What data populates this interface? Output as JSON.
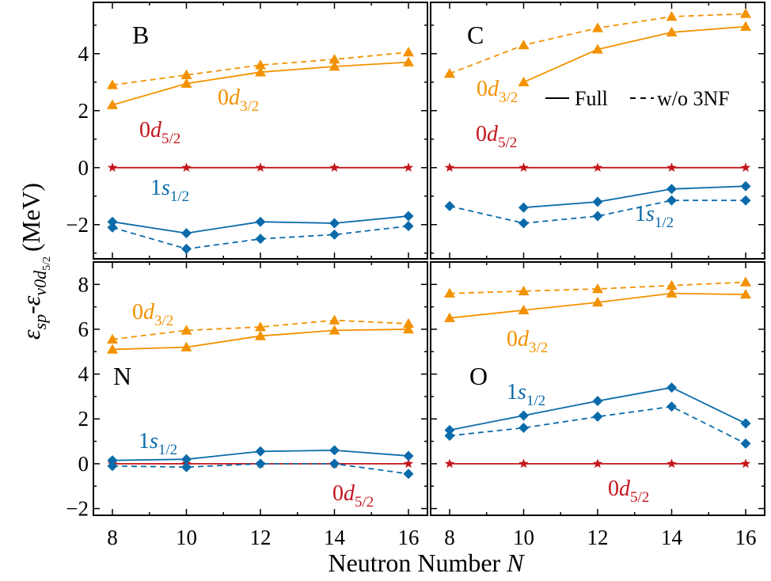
{
  "figure": {
    "ylabel_main": "ε",
    "ylabel_sub1": "sp",
    "ylabel_dash": "-",
    "ylabel_main2": "ε",
    "ylabel_sub2": "ν0d",
    "ylabel_sub3": "5/2",
    "ylabel_unit": "(MeV)",
    "xlabel": "Neutron Number",
    "xlabel_var": "N"
  },
  "legend": {
    "full": "Full",
    "wo3nf": "w/o 3NF"
  },
  "colors": {
    "orange": "#F39200",
    "blue": "#0B6BAA",
    "red": "#C4161C",
    "frame": "#000000"
  },
  "chart_data": [
    {
      "type": "line",
      "panel": "B",
      "label": "B",
      "x": [
        8,
        10,
        12,
        14,
        16
      ],
      "ylim": [
        -3.2,
        5.8
      ],
      "yticks": [
        -2,
        0,
        2,
        4
      ],
      "series": [
        {
          "name": "0d3/2 Full",
          "orbital": "d32",
          "style": "solid",
          "values": [
            2.2,
            2.95,
            3.35,
            3.55,
            3.7
          ]
        },
        {
          "name": "0d3/2 w/o 3NF",
          "orbital": "d32",
          "style": "dashed",
          "values": [
            2.9,
            3.25,
            3.6,
            3.8,
            4.05
          ]
        },
        {
          "name": "0d5/2",
          "orbital": "d52",
          "style": "solid",
          "values": [
            0,
            0,
            0,
            0,
            0
          ]
        },
        {
          "name": "1s1/2 Full",
          "orbital": "s12",
          "style": "solid",
          "values": [
            -1.9,
            -2.3,
            -1.9,
            -1.95,
            -1.7
          ]
        },
        {
          "name": "1s1/2 w/o 3NF",
          "orbital": "s12",
          "style": "dashed",
          "values": [
            -2.1,
            -2.85,
            -2.5,
            -2.35,
            -2.05
          ]
        }
      ],
      "annotations": [
        {
          "orbital": "d32",
          "base": "0",
          "var": "d",
          "sub": "3/2"
        },
        {
          "orbital": "d52",
          "base": "0",
          "var": "d",
          "sub": "5/2"
        },
        {
          "orbital": "s12",
          "base": "1",
          "var": "s",
          "sub": "1/2"
        }
      ]
    },
    {
      "type": "line",
      "panel": "C",
      "label": "C",
      "x": [
        8,
        10,
        12,
        14,
        16
      ],
      "ylim": [
        -3.2,
        5.8
      ],
      "yticks": [
        -2,
        0,
        2,
        4
      ],
      "series": [
        {
          "name": "0d3/2 Full",
          "orbital": "d32",
          "style": "solid",
          "x": [
            10,
            12,
            14,
            16
          ],
          "values": [
            3.0,
            4.15,
            4.75,
            4.95
          ]
        },
        {
          "name": "0d3/2 w/o 3NF",
          "orbital": "d32",
          "style": "dashed",
          "values": [
            3.3,
            4.3,
            4.9,
            5.3,
            5.4
          ]
        },
        {
          "name": "0d5/2",
          "orbital": "d52",
          "style": "solid",
          "values": [
            0,
            0,
            0,
            0,
            0
          ]
        },
        {
          "name": "1s1/2 Full",
          "orbital": "s12",
          "style": "solid",
          "x": [
            10,
            12,
            14,
            16
          ],
          "values": [
            -1.4,
            -1.2,
            -0.75,
            -0.65
          ]
        },
        {
          "name": "1s1/2 w/o 3NF",
          "orbital": "s12",
          "style": "dashed",
          "values": [
            -1.35,
            -1.95,
            -1.7,
            -1.15,
            -1.15
          ]
        }
      ],
      "annotations": [
        {
          "orbital": "d32",
          "base": "0",
          "var": "d",
          "sub": "3/2"
        },
        {
          "orbital": "d52",
          "base": "0",
          "var": "d",
          "sub": "5/2"
        },
        {
          "orbital": "s12",
          "base": "1",
          "var": "s",
          "sub": "1/2"
        }
      ]
    },
    {
      "type": "line",
      "panel": "N",
      "label": "N",
      "x": [
        8,
        10,
        12,
        14,
        16
      ],
      "ylim": [
        -2.3,
        9.0
      ],
      "yticks": [
        -2,
        0,
        2,
        4,
        6,
        8
      ],
      "series": [
        {
          "name": "0d3/2 Full",
          "orbital": "d32",
          "style": "solid",
          "values": [
            5.1,
            5.2,
            5.7,
            5.95,
            6.0
          ]
        },
        {
          "name": "0d3/2 w/o 3NF",
          "orbital": "d32",
          "style": "dashed",
          "values": [
            5.55,
            5.95,
            6.1,
            6.4,
            6.25
          ]
        },
        {
          "name": "0d5/2",
          "orbital": "d52",
          "style": "solid",
          "values": [
            0,
            0,
            0,
            0,
            0
          ]
        },
        {
          "name": "1s1/2 Full",
          "orbital": "s12",
          "style": "solid",
          "values": [
            0.15,
            0.2,
            0.55,
            0.6,
            0.35
          ]
        },
        {
          "name": "1s1/2 w/o 3NF",
          "orbital": "s12",
          "style": "dashed",
          "values": [
            -0.1,
            -0.15,
            0.0,
            0.0,
            -0.45
          ]
        }
      ],
      "annotations": [
        {
          "orbital": "d32",
          "base": "0",
          "var": "d",
          "sub": "3/2"
        },
        {
          "orbital": "s12",
          "base": "1",
          "var": "s",
          "sub": "1/2"
        },
        {
          "orbital": "d52",
          "base": "0",
          "var": "d",
          "sub": "5/2"
        }
      ]
    },
    {
      "type": "line",
      "panel": "O",
      "label": "O",
      "x": [
        8,
        10,
        12,
        14,
        16
      ],
      "ylim": [
        -2.3,
        9.0
      ],
      "yticks": [
        -2,
        0,
        2,
        4,
        6,
        8
      ],
      "series": [
        {
          "name": "0d3/2 Full",
          "orbital": "d32",
          "style": "solid",
          "values": [
            6.5,
            6.85,
            7.2,
            7.6,
            7.55
          ]
        },
        {
          "name": "0d3/2 w/o 3NF",
          "orbital": "d32",
          "style": "dashed",
          "values": [
            7.6,
            7.7,
            7.8,
            7.95,
            8.1
          ]
        },
        {
          "name": "0d5/2",
          "orbital": "d52",
          "style": "solid",
          "values": [
            0,
            0,
            0,
            0,
            0
          ]
        },
        {
          "name": "1s1/2 Full",
          "orbital": "s12",
          "style": "solid",
          "values": [
            1.5,
            2.15,
            2.8,
            3.4,
            1.8
          ]
        },
        {
          "name": "1s1/2 w/o 3NF",
          "orbital": "s12",
          "style": "dashed",
          "values": [
            1.25,
            1.6,
            2.1,
            2.55,
            0.9
          ]
        }
      ],
      "annotations": [
        {
          "orbital": "s12",
          "base": "1",
          "var": "s",
          "sub": "1/2"
        },
        {
          "orbital": "d32",
          "base": "0",
          "var": "d",
          "sub": "3/2"
        },
        {
          "orbital": "d52",
          "base": "0",
          "var": "d",
          "sub": "5/2"
        }
      ]
    }
  ]
}
